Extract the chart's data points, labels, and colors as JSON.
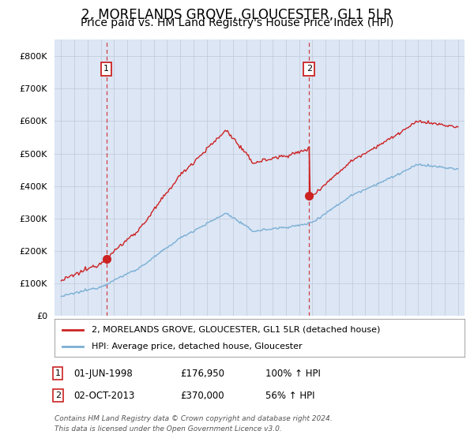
{
  "title": "2, MORELANDS GROVE, GLOUCESTER, GL1 5LR",
  "subtitle": "Price paid vs. HM Land Registry's House Price Index (HPI)",
  "title_fontsize": 12,
  "subtitle_fontsize": 10,
  "background_color": "#dce6f5",
  "hpi_color": "#7aafd4",
  "price_color": "#cc2222",
  "sale1_date": 1998.42,
  "sale1_price": 176950,
  "sale2_date": 2013.75,
  "sale2_price": 370000,
  "legend_label_price": "2, MORELANDS GROVE, GLOUCESTER, GL1 5LR (detached house)",
  "legend_label_hpi": "HPI: Average price, detached house, Gloucester",
  "ann1_date": "01-JUN-1998",
  "ann1_price": "£176,950",
  "ann1_hpi": "100% ↑ HPI",
  "ann2_date": "02-OCT-2013",
  "ann2_price": "£370,000",
  "ann2_hpi": "56% ↑ HPI",
  "footer_line1": "Contains HM Land Registry data © Crown copyright and database right 2024.",
  "footer_line2": "This data is licensed under the Open Government Licence v3.0.",
  "ylim": [
    0,
    850000
  ],
  "xlim_start": 1994.5,
  "xlim_end": 2025.5
}
